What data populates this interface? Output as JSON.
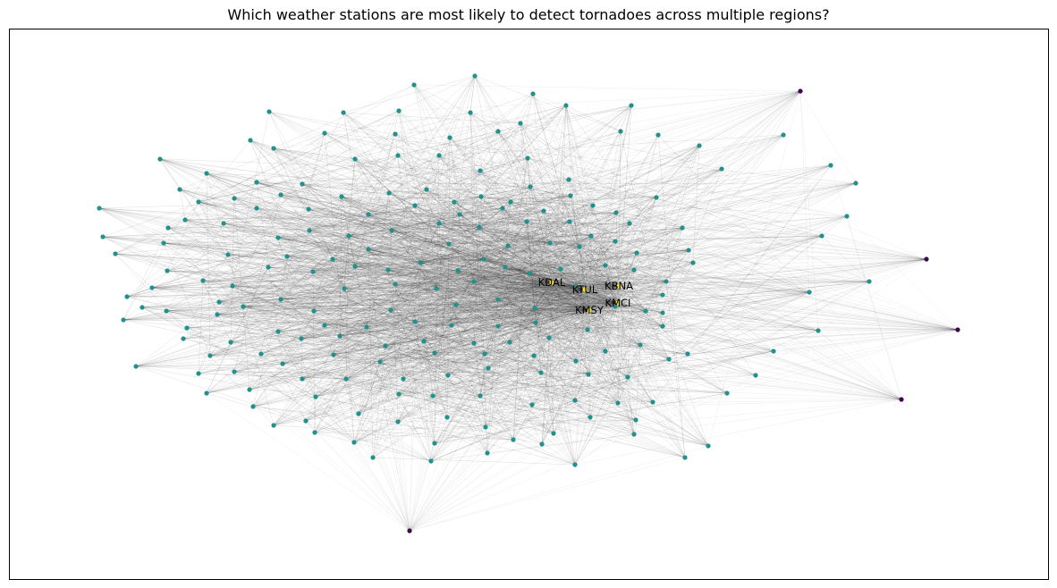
{
  "figure": {
    "title": "Which weather stations are most likely to detect tornadoes across multiple regions?"
  },
  "graph": {
    "layout": "spring",
    "colors": {
      "regular_node": "#21918c",
      "outlier_node": "#440154",
      "hub_node": "#fde725",
      "edge": "#000000"
    },
    "hubs": [
      "KDAL",
      "KTUL",
      "KBNA",
      "KMSY",
      "KMCI"
    ],
    "outlier_count": 5,
    "regular_count": 190
  }
}
